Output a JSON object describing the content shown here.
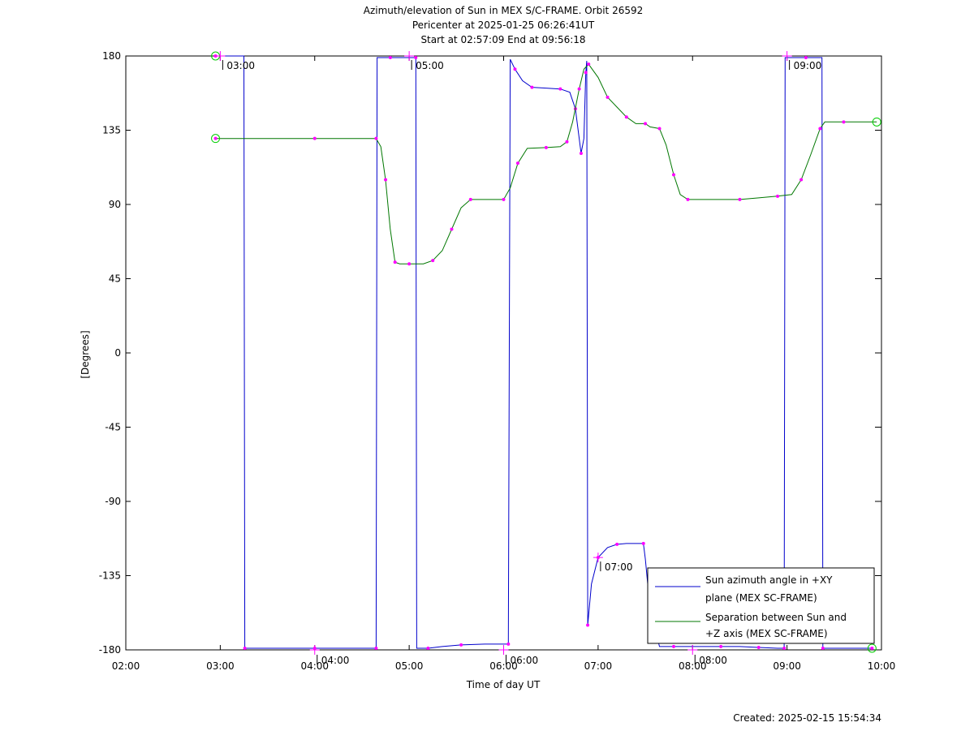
{
  "chart_data": {
    "type": "line",
    "title_lines": [
      "Azimuth/elevation of Sun in MEX S/C-FRAME.  Orbit 26592",
      "Pericenter at 2025-01-25 06:26:41UT",
      "Start at 02:57:09 End at 09:56:18"
    ],
    "xlabel": "Time of day UT",
    "ylabel": "[Degrees]",
    "xlim_hours": [
      2.0,
      10.0
    ],
    "ylim": [
      -180,
      180
    ],
    "x_ticks": [
      {
        "h": 2,
        "label": "02:00"
      },
      {
        "h": 3,
        "label": "03:00"
      },
      {
        "h": 4,
        "label": "04:00"
      },
      {
        "h": 5,
        "label": "05:00"
      },
      {
        "h": 6,
        "label": "06:00"
      },
      {
        "h": 7,
        "label": "07:00"
      },
      {
        "h": 8,
        "label": "08:00"
      },
      {
        "h": 9,
        "label": "09:00"
      },
      {
        "h": 10,
        "label": "10:00"
      }
    ],
    "y_ticks": [
      {
        "v": 180,
        "label": "180"
      },
      {
        "v": 135,
        "label": "135"
      },
      {
        "v": 90,
        "label": "90"
      },
      {
        "v": 45,
        "label": "45"
      },
      {
        "v": 0,
        "label": "0"
      },
      {
        "v": -45,
        "label": "-45"
      },
      {
        "v": -90,
        "label": "-90"
      },
      {
        "v": -135,
        "label": "-135"
      },
      {
        "v": -180,
        "label": "-180"
      }
    ],
    "grid": false,
    "legend_position": "bottom-right",
    "series": [
      {
        "name": "Sun azimuth angle in +XY plane (MEX SC-FRAME)",
        "legend_lines": [
          "Sun azimuth angle in +XY",
          "plane (MEX SC-FRAME)"
        ],
        "color": "#0000cc",
        "points": [
          [
            2.95,
            180
          ],
          [
            3.25,
            180
          ],
          [
            3.26,
            -179
          ],
          [
            3.5,
            -179
          ],
          [
            4.0,
            -179
          ],
          [
            4.5,
            -179
          ],
          [
            4.65,
            -179
          ],
          [
            4.66,
            179
          ],
          [
            4.8,
            179
          ],
          [
            5.0,
            179
          ],
          [
            5.07,
            179
          ],
          [
            5.08,
            -179
          ],
          [
            5.2,
            -179
          ],
          [
            5.35,
            -178
          ],
          [
            5.55,
            -177
          ],
          [
            5.8,
            -176.5
          ],
          [
            6.05,
            -176.5
          ],
          [
            6.07,
            178
          ],
          [
            6.12,
            172
          ],
          [
            6.2,
            165
          ],
          [
            6.3,
            161
          ],
          [
            6.45,
            160.5
          ],
          [
            6.6,
            160
          ],
          [
            6.7,
            158
          ],
          [
            6.76,
            148
          ],
          [
            6.8,
            130
          ],
          [
            6.82,
            121
          ],
          [
            6.85,
            130
          ],
          [
            6.87,
            170
          ],
          [
            6.88,
            177
          ],
          [
            6.89,
            -165
          ],
          [
            6.93,
            -140
          ],
          [
            7.0,
            -124
          ],
          [
            7.1,
            -118
          ],
          [
            7.2,
            -116
          ],
          [
            7.3,
            -115.5
          ],
          [
            7.48,
            -115.5
          ],
          [
            7.5,
            -125
          ],
          [
            7.55,
            -155
          ],
          [
            7.65,
            -178
          ],
          [
            7.8,
            -178
          ],
          [
            8.0,
            -178
          ],
          [
            8.3,
            -178
          ],
          [
            8.5,
            -178
          ],
          [
            8.7,
            -178.5
          ],
          [
            8.9,
            -179
          ],
          [
            8.97,
            -179
          ],
          [
            8.98,
            179
          ],
          [
            9.2,
            179
          ],
          [
            9.37,
            179
          ],
          [
            9.38,
            -179
          ],
          [
            9.6,
            -179
          ],
          [
            9.9,
            -179
          ]
        ]
      },
      {
        "name": "Separation between Sun and +Z axis (MEX SC-FRAME)",
        "legend_lines": [
          "Separation between Sun and",
          "+Z axis (MEX SC-FRAME)"
        ],
        "color": "#007700",
        "points": [
          [
            2.95,
            130
          ],
          [
            3.5,
            130
          ],
          [
            4.0,
            130
          ],
          [
            4.5,
            130
          ],
          [
            4.65,
            130
          ],
          [
            4.7,
            125
          ],
          [
            4.75,
            105
          ],
          [
            4.8,
            75
          ],
          [
            4.85,
            55
          ],
          [
            4.9,
            54
          ],
          [
            5.0,
            54
          ],
          [
            5.15,
            54
          ],
          [
            5.25,
            56
          ],
          [
            5.35,
            62
          ],
          [
            5.45,
            75
          ],
          [
            5.55,
            88
          ],
          [
            5.65,
            93
          ],
          [
            5.8,
            93
          ],
          [
            6.0,
            93
          ],
          [
            6.07,
            100
          ],
          [
            6.15,
            115
          ],
          [
            6.25,
            124
          ],
          [
            6.45,
            124.5
          ],
          [
            6.6,
            125
          ],
          [
            6.67,
            128
          ],
          [
            6.73,
            140
          ],
          [
            6.8,
            160
          ],
          [
            6.85,
            172
          ],
          [
            6.9,
            175
          ],
          [
            7.0,
            167
          ],
          [
            7.1,
            155
          ],
          [
            7.2,
            149
          ],
          [
            7.3,
            143
          ],
          [
            7.4,
            139
          ],
          [
            7.5,
            139
          ],
          [
            7.55,
            137
          ],
          [
            7.65,
            136
          ],
          [
            7.72,
            126
          ],
          [
            7.8,
            108
          ],
          [
            7.87,
            96
          ],
          [
            7.95,
            93
          ],
          [
            8.2,
            93
          ],
          [
            8.5,
            93
          ],
          [
            8.7,
            94
          ],
          [
            8.9,
            95
          ],
          [
            9.05,
            96
          ],
          [
            9.15,
            105
          ],
          [
            9.25,
            120
          ],
          [
            9.35,
            136
          ],
          [
            9.4,
            140
          ],
          [
            9.6,
            140
          ],
          [
            9.95,
            140
          ]
        ]
      }
    ],
    "hour_markers": [
      {
        "h": 3.0,
        "v": 180,
        "label": "03:00"
      },
      {
        "h": 4.0,
        "v": -180,
        "label": "04:00"
      },
      {
        "h": 5.0,
        "v": 180,
        "label": "05:00"
      },
      {
        "h": 6.0,
        "v": -180,
        "label": "06:00"
      },
      {
        "h": 7.0,
        "v": -124,
        "label": "07:00"
      },
      {
        "h": 8.0,
        "v": -180,
        "label": "08:00"
      },
      {
        "h": 9.0,
        "v": 180,
        "label": "09:00"
      }
    ],
    "footer": "Created: 2025-02-15 15:54:34"
  }
}
